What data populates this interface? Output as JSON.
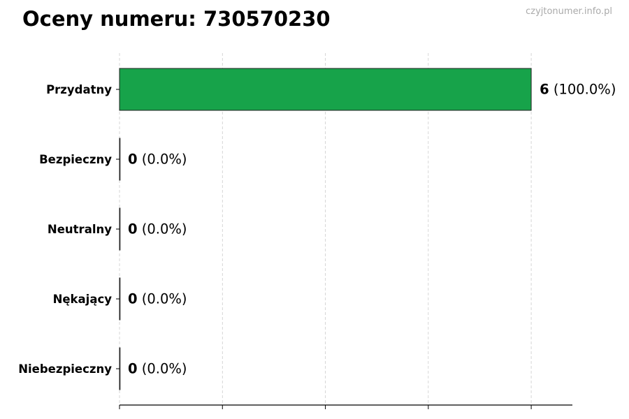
{
  "chart_data": {
    "type": "bar",
    "orientation": "horizontal",
    "title": "Oceny numeru: 730570230",
    "watermark": "czyjtonumer.info.pl",
    "categories": [
      "Przydatny",
      "Bezpieczny",
      "Neutralny",
      "Nękający",
      "Niebezpieczny"
    ],
    "values": [
      6,
      0,
      0,
      0,
      0
    ],
    "percents": [
      "100.0%",
      "0.0%",
      "0.0%",
      "0.0%",
      "0.0%"
    ],
    "xlim": [
      0,
      6.6
    ],
    "xticks": [
      0,
      1.5,
      3,
      4.5,
      6
    ],
    "xtick_labels_shown": false,
    "grid": "x-dashed",
    "colors": {
      "Przydatny": "#17a34a"
    },
    "xlabel": "",
    "ylabel": ""
  }
}
